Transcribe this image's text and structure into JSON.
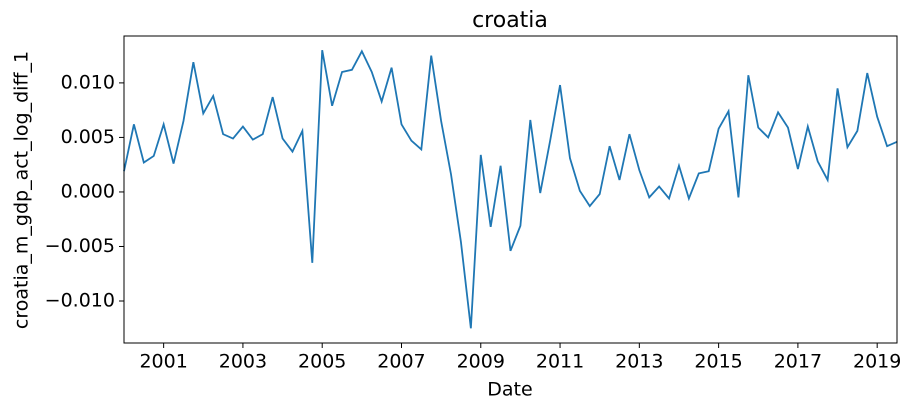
{
  "chart_data": {
    "type": "line",
    "title": "croatia",
    "x_label": "Date",
    "y_label": "croatia_m_gdp_act_log_diff_1",
    "x": [
      2000,
      2000.25,
      2000.5,
      2000.75,
      2001,
      2001.25,
      2001.5,
      2001.75,
      2002,
      2002.25,
      2002.5,
      2002.75,
      2003,
      2003.25,
      2003.5,
      2003.75,
      2004,
      2004.25,
      2004.5,
      2004.75,
      2005,
      2005.25,
      2005.5,
      2005.75,
      2006,
      2006.25,
      2006.5,
      2006.75,
      2007,
      2007.25,
      2007.5,
      2007.75,
      2008,
      2008.25,
      2008.5,
      2008.75,
      2009,
      2009.25,
      2009.5,
      2009.75,
      2010,
      2010.25,
      2010.5,
      2010.75,
      2011,
      2011.25,
      2011.5,
      2011.75,
      2012,
      2012.25,
      2012.5,
      2012.75,
      2013,
      2013.25,
      2013.5,
      2013.75,
      2014,
      2014.25,
      2014.5,
      2014.75,
      2015,
      2015.25,
      2015.5,
      2015.75,
      2016,
      2016.25,
      2016.5,
      2016.75,
      2017,
      2017.25,
      2017.5,
      2017.75,
      2018,
      2018.25,
      2018.5,
      2018.75,
      2019,
      2019.25,
      2019.5
    ],
    "series": [
      {
        "name": "croatia",
        "color": "#1f77b4",
        "values": [
          0.0019,
          0.0062,
          0.0027,
          0.0033,
          0.0062,
          0.0026,
          0.0065,
          0.0119,
          0.0072,
          0.0088,
          0.0053,
          0.0049,
          0.006,
          0.0048,
          0.0053,
          0.0087,
          0.0049,
          0.0037,
          0.0056,
          -0.0065,
          0.013,
          0.0079,
          0.011,
          0.0112,
          0.0129,
          0.011,
          0.0083,
          0.0114,
          0.0062,
          0.0047,
          0.0039,
          0.0125,
          0.0065,
          0.0016,
          -0.0046,
          -0.0125,
          0.0034,
          -0.0032,
          0.0024,
          -0.0054,
          -0.0031,
          0.0066,
          -0.0001,
          0.0047,
          0.0098,
          0.0031,
          0.0001,
          -0.0013,
          -0.0002,
          0.0042,
          0.0011,
          0.0053,
          0.002,
          -0.0005,
          0.0005,
          -0.0006,
          0.0024,
          -0.0006,
          0.0017,
          0.0019,
          0.0058,
          0.0074,
          -0.0005,
          0.0107,
          0.0059,
          0.005,
          0.0073,
          0.0059,
          0.0021,
          0.006,
          0.0028,
          0.0011,
          0.0095,
          0.0041,
          0.0056,
          0.0109,
          0.0069,
          0.0042,
          0.0046
        ]
      }
    ],
    "xlim": [
      2000,
      2019.5
    ],
    "xticks": [
      2001,
      2003,
      2005,
      2007,
      2009,
      2011,
      2013,
      2015,
      2017,
      2019
    ],
    "ylim": [
      -0.01385,
      0.0143
    ],
    "yticks": [
      {
        "value": -0.01,
        "label": "−0.010"
      },
      {
        "value": -0.005,
        "label": "−0.005"
      },
      {
        "value": 0,
        "label": "0.000"
      },
      {
        "value": 0.005,
        "label": "0.005"
      },
      {
        "value": 0.01,
        "label": "0.010"
      }
    ],
    "grid": false
  }
}
